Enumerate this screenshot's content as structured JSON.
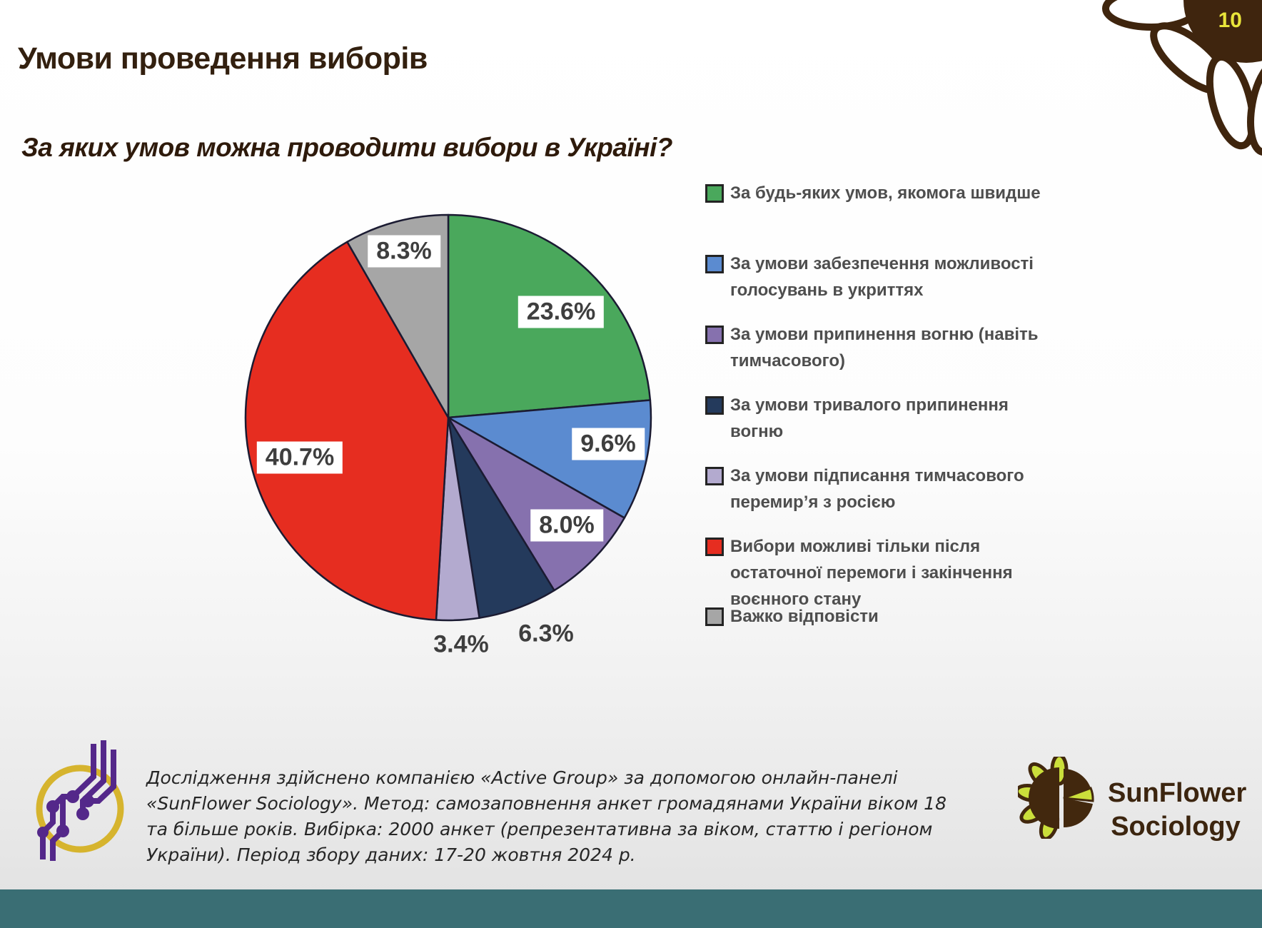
{
  "page": {
    "title": "Умови проведення виборів",
    "page_number": "10"
  },
  "chart_data": {
    "type": "pie",
    "title": "За яких умов можна проводити вибори в Україні?",
    "units": "percent",
    "start_angle": "12 o'clock, clockwise",
    "legend_position": "right",
    "slices": [
      {
        "label": "За будь-яких умов, якомога швидше",
        "value": 23.6,
        "display": "23.6%",
        "color": "#4aa85c"
      },
      {
        "label": "За умови забезпечення можливості голосувань в укриттях",
        "value": 9.6,
        "display": "9.6%",
        "color": "#5b8bd0"
      },
      {
        "label": "За умови припинення вогню (навіть тимчасового)",
        "value": 8.0,
        "display": "8.0%",
        "color": "#8671ae"
      },
      {
        "label": "За умови тривалого припинення вогню",
        "value": 6.3,
        "display": "6.3%",
        "color": "#243a5c"
      },
      {
        "label": "За умови підписання тимчасового перемир’я з росією",
        "value": 3.4,
        "display": "3.4%",
        "color": "#b3aacf"
      },
      {
        "label": "Вибори можливі тільки після остаточної перемоги і закінчення воєнного стану",
        "value": 40.7,
        "display": "40.7%",
        "color": "#e62d20"
      },
      {
        "label": "Важко відповісти",
        "value": 8.3,
        "display": "8.3%",
        "color": "#a6a6a6"
      }
    ]
  },
  "footer": {
    "note": "Дослідження здійснено компанією «Active Group» за допомогою онлайн-панелі «SunFlower Sociology». Метод: самозаповнення анкет громадянами України віком 18 та більше років. Вибірка: 2000 анкет (репрезентативна за віком, статтю і регіоном України). Період збору даних: 17-20 жовтня 2024 р.",
    "brand_line1": "SunFlower",
    "brand_line2": "Sociology"
  },
  "colors": {
    "accent_teal": "#3a6e74",
    "title_brown": "#33200f",
    "page_number_yellow": "#e9e53a",
    "pie_stroke": "#1b1b32"
  }
}
